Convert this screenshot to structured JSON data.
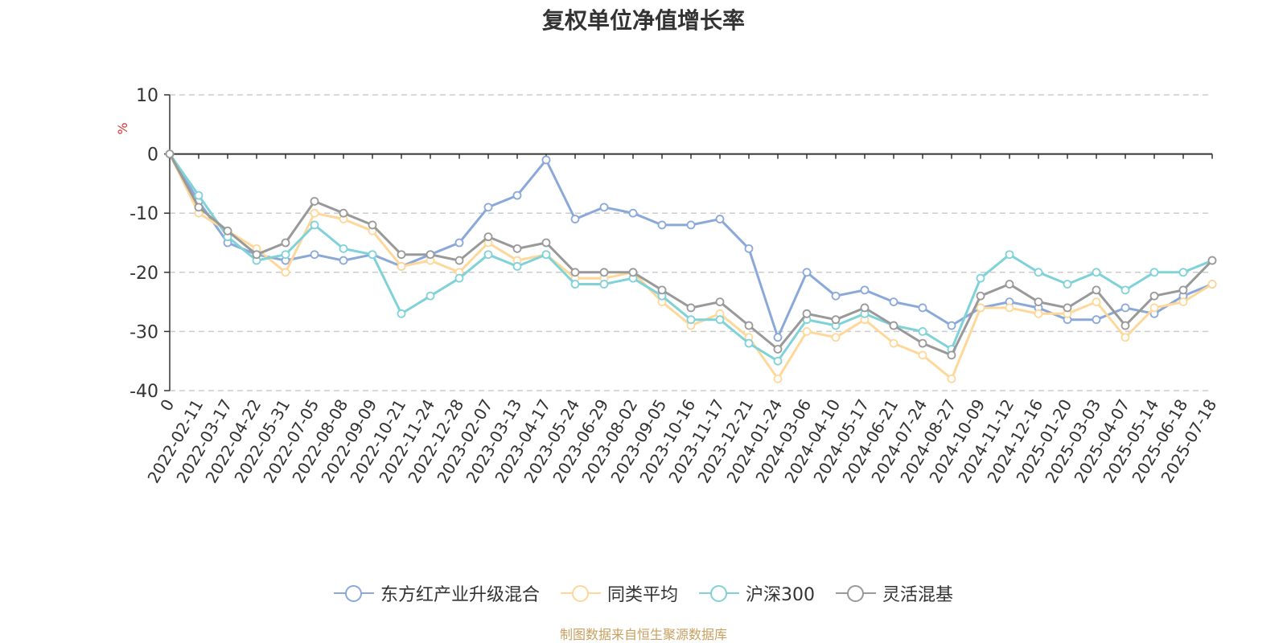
{
  "title": "复权单位净值增长率",
  "source": "制图数据来自恒生聚源数据库",
  "y_unit": "%",
  "legend": [
    {
      "name": "东方红产业升级混合",
      "color": "#8aa8d8"
    },
    {
      "name": "同类平均",
      "color": "#fdd89a"
    },
    {
      "name": "沪深300",
      "color": "#7fd2d8"
    },
    {
      "name": "灵活混基",
      "color": "#999999"
    }
  ],
  "chart_data": {
    "type": "line",
    "ylim": [
      -40,
      10
    ],
    "yticks": [
      10,
      0,
      -10,
      -20,
      -30,
      -40
    ],
    "grid": "horizontal-dashed",
    "legend_position": "bottom",
    "x_labels": [
      "0",
      "2022-02-11",
      "2022-03-17",
      "2022-04-22",
      "2022-05-31",
      "2022-07-05",
      "2022-08-08",
      "2022-09-09",
      "2022-10-21",
      "2022-11-24",
      "2022-12-28",
      "2023-02-07",
      "2023-03-13",
      "2023-04-17",
      "2023-05-24",
      "2023-06-29",
      "2023-08-02",
      "2023-09-05",
      "2023-10-16",
      "2023-11-17",
      "2023-12-21",
      "2024-01-24",
      "2024-03-06",
      "2024-04-10",
      "2024-05-17",
      "2024-06-21",
      "2024-07-24",
      "2024-08-27",
      "2024-10-09",
      "2024-11-12",
      "2024-12-16",
      "2025-01-20",
      "2025-03-03",
      "2025-04-07",
      "2025-05-14",
      "2025-06-18",
      "2025-07-18"
    ],
    "series": [
      {
        "name": "东方红产业升级混合",
        "values": [
          0,
          -8,
          -15,
          -17,
          -18,
          -17,
          -18,
          -17,
          -19,
          -17,
          -15,
          -9,
          -7,
          -1,
          -11,
          -9,
          -10,
          -12,
          -12,
          -11,
          -16,
          -31,
          -20,
          -24,
          -23,
          -25,
          -26,
          -29,
          -26,
          -25,
          -26,
          -28,
          -28,
          -26,
          -27,
          -24,
          -22
        ]
      },
      {
        "name": "同类平均",
        "values": [
          0,
          -10,
          -13,
          -16,
          -20,
          -10,
          -11,
          -13,
          -19,
          -18,
          -20,
          -15,
          -18,
          -17,
          -21,
          -21,
          -20,
          -25,
          -29,
          -27,
          -31,
          -38,
          -30,
          -31,
          -28,
          -32,
          -34,
          -38,
          -26,
          -26,
          -27,
          -27,
          -25,
          -31,
          -26,
          -25,
          -22
        ]
      },
      {
        "name": "沪深300",
        "values": [
          0,
          -7,
          -14,
          -18,
          -17,
          -12,
          -16,
          -17,
          -27,
          -24,
          -21,
          -17,
          -19,
          -17,
          -22,
          -22,
          -21,
          -24,
          -28,
          -28,
          -32,
          -35,
          -28,
          -29,
          -27,
          -29,
          -30,
          -33,
          -21,
          -17,
          -20,
          -22,
          -20,
          -23,
          -20,
          -20,
          -18
        ]
      },
      {
        "name": "灵活混基",
        "values": [
          0,
          -9,
          -13,
          -17,
          -15,
          -8,
          -10,
          -12,
          -17,
          -17,
          -18,
          -14,
          -16,
          -15,
          -20,
          -20,
          -20,
          -23,
          -26,
          -25,
          -29,
          -33,
          -27,
          -28,
          -26,
          -29,
          -32,
          -34,
          -24,
          -22,
          -25,
          -26,
          -23,
          -29,
          -24,
          -23,
          -18
        ]
      }
    ]
  }
}
